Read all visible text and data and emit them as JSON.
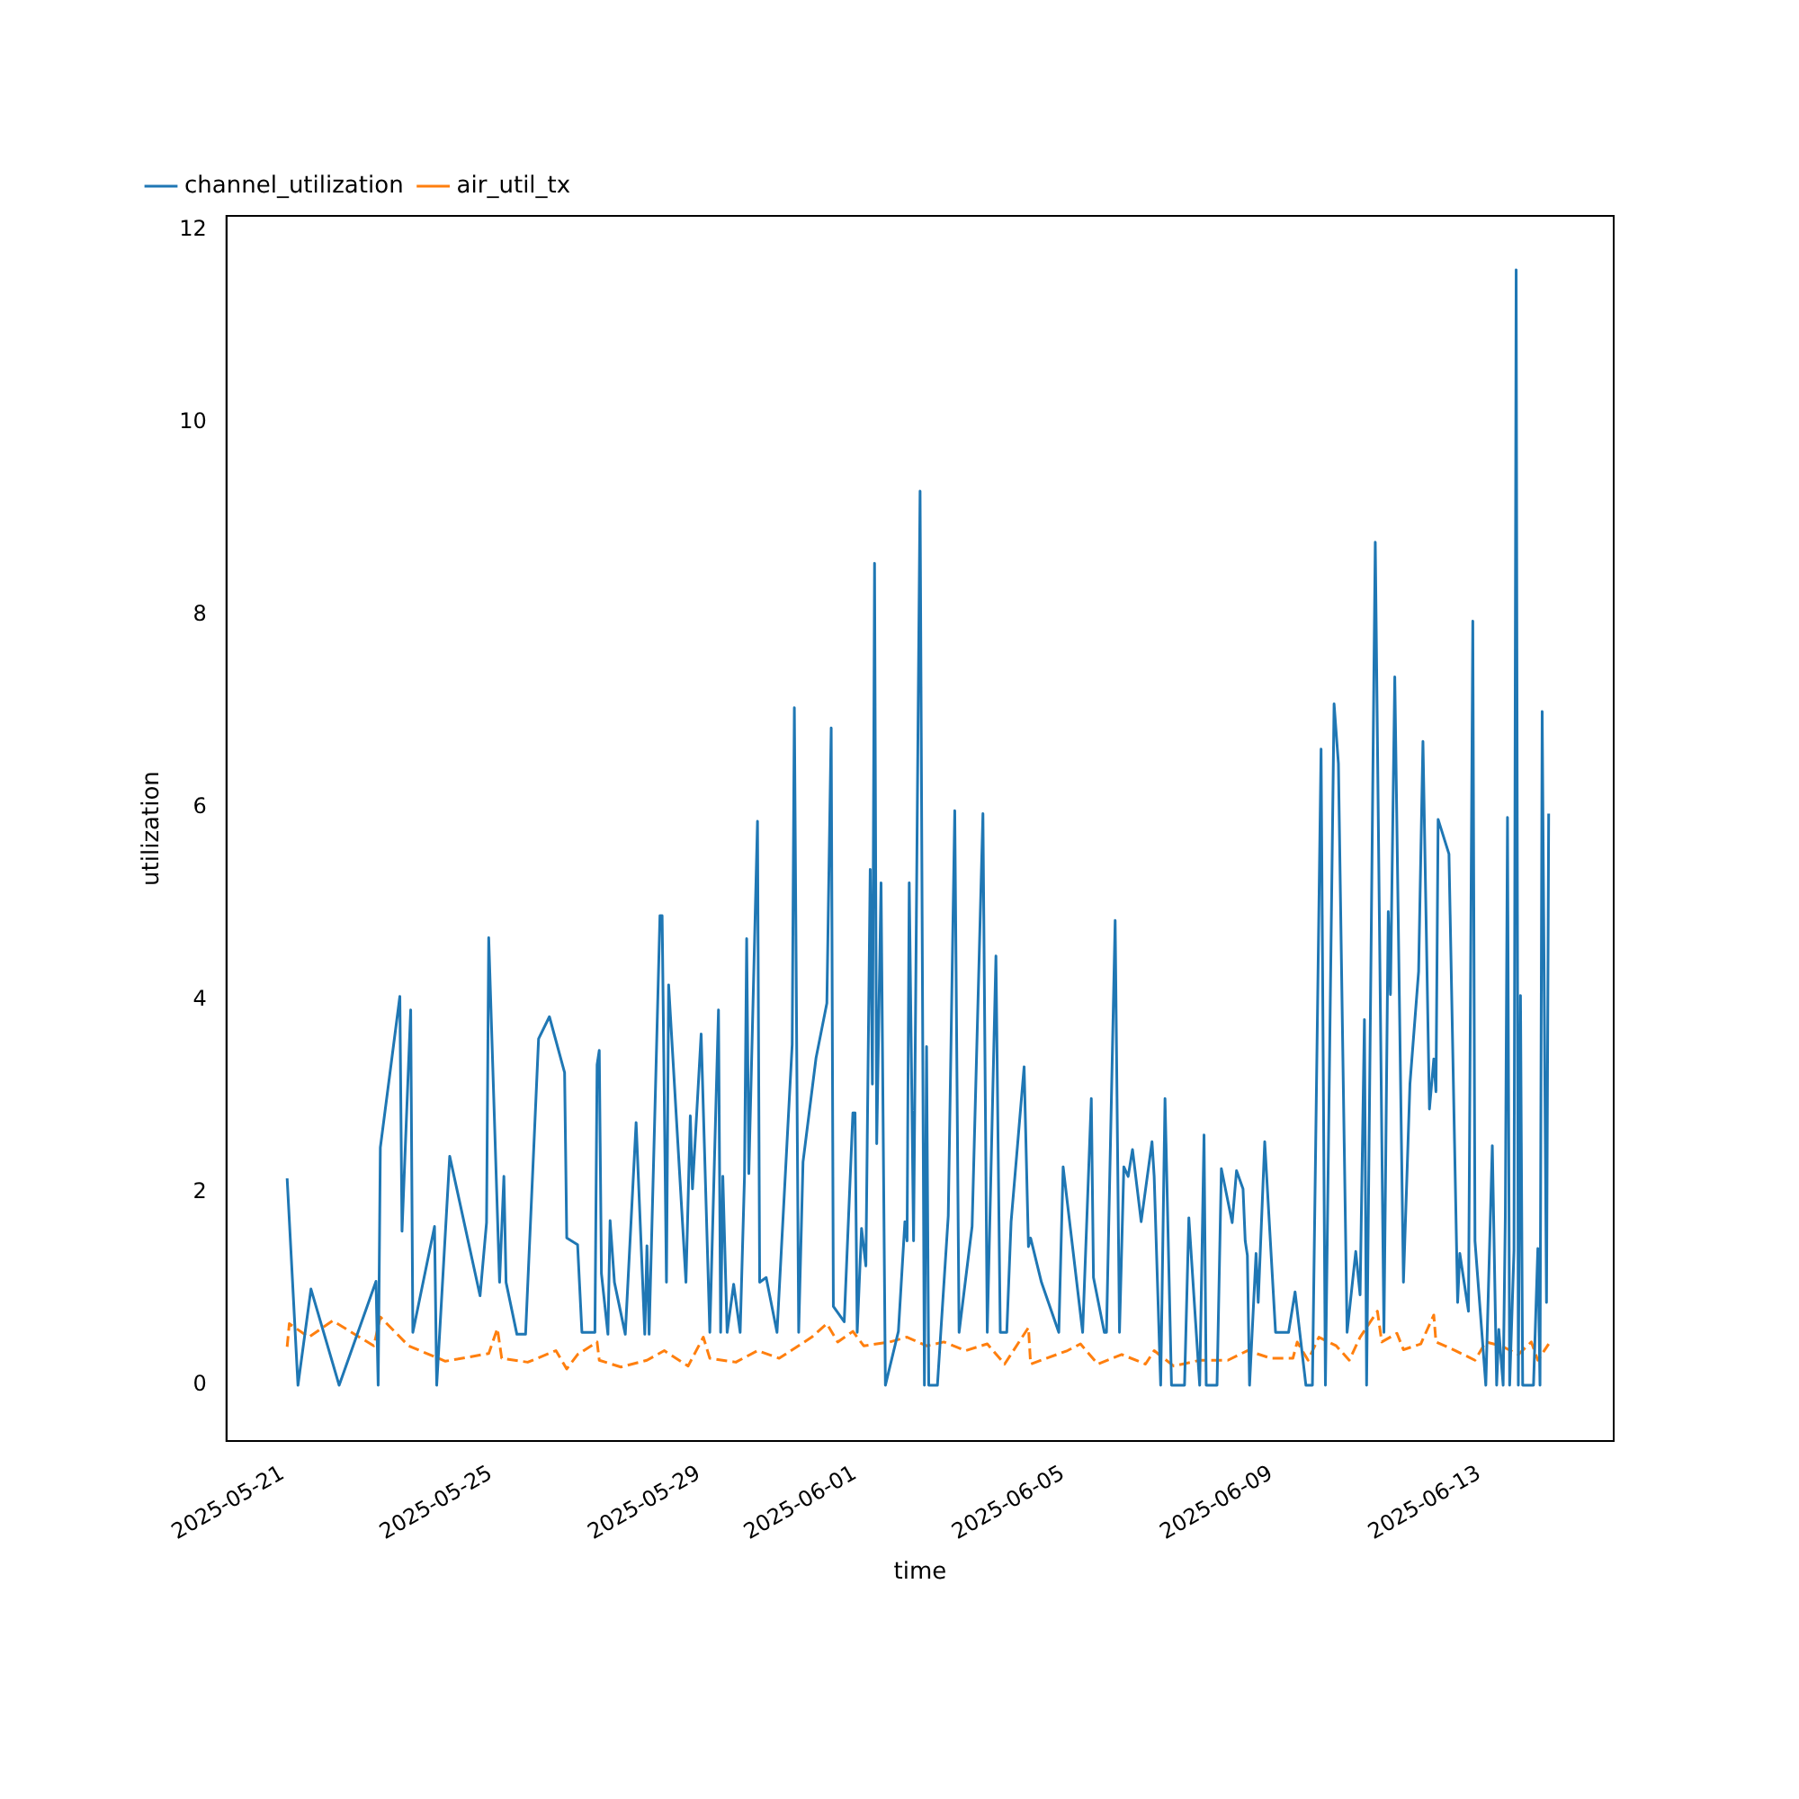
{
  "chart_data": {
    "type": "line",
    "xlabel": "time",
    "ylabel": "utilization",
    "legend": "top left",
    "xlim": [
      "2025-05-19T22:00",
      "2025-06-15T14:00"
    ],
    "ylim": [
      -0.58,
      12.15
    ],
    "xticks": [
      "2025-05-21",
      "2025-05-25",
      "2025-05-29",
      "2025-06-01",
      "2025-06-05",
      "2025-06-09",
      "2025-06-13"
    ],
    "yticks": [
      0,
      2,
      4,
      6,
      8,
      10,
      12
    ],
    "series": [
      {
        "name": "channel_utilization",
        "color": "#1f77b4",
        "line_style": "solid",
        "x": [
          "2025-05-21T02:00",
          "2025-05-21T07:00",
          "2025-05-21T13:00",
          "2025-05-22T02:00",
          "2025-05-22T19:00",
          "2025-05-22T20:00",
          "2025-05-22T21:00",
          "2025-05-23T06:00",
          "2025-05-23T07:00",
          "2025-05-23T11:00",
          "2025-05-23T12:00",
          "2025-05-23T22:00",
          "2025-05-23T23:00",
          "2025-05-24T05:00",
          "2025-05-24T19:00",
          "2025-05-24T22:00",
          "2025-05-24T23:00",
          "2025-05-25T04:00",
          "2025-05-25T06:00",
          "2025-05-25T07:00",
          "2025-05-25T12:00",
          "2025-05-25T16:00",
          "2025-05-25T22:00",
          "2025-05-26T03:00",
          "2025-05-26T10:00",
          "2025-05-26T11:00",
          "2025-05-26T16:00",
          "2025-05-26T18:00",
          "2025-05-27T00:00",
          "2025-05-27T01:00",
          "2025-05-27T02:00",
          "2025-05-27T03:00",
          "2025-05-27T06:00",
          "2025-05-27T07:00",
          "2025-05-27T09:00",
          "2025-05-27T14:00",
          "2025-05-27T19:00",
          "2025-05-27T23:00",
          "2025-05-28T00:00",
          "2025-05-28T01:00",
          "2025-05-28T06:00",
          "2025-05-28T07:00",
          "2025-05-28T09:00",
          "2025-05-28T10:00",
          "2025-05-28T18:00",
          "2025-05-28T20:00",
          "2025-05-28T21:00",
          "2025-05-29T01:00",
          "2025-05-29T05:00",
          "2025-05-29T09:00",
          "2025-05-29T10:00",
          "2025-05-29T11:00",
          "2025-05-29T13:00",
          "2025-05-29T16:00",
          "2025-05-29T19:00",
          "2025-05-29T21:00",
          "2025-05-29T22:00",
          "2025-05-29T23:00",
          "2025-05-30T03:00",
          "2025-05-30T04:00",
          "2025-05-30T07:00",
          "2025-05-30T12:00",
          "2025-05-30T19:00",
          "2025-05-30T20:00",
          "2025-05-30T22:00",
          "2025-05-31T00:00",
          "2025-05-31T06:00",
          "2025-05-31T11:00",
          "2025-05-31T13:00",
          "2025-05-31T14:00",
          "2025-05-31T19:00",
          "2025-05-31T23:00",
          "2025-06-01T00:00",
          "2025-06-01T01:00",
          "2025-06-01T03:00",
          "2025-06-01T05:00",
          "2025-06-01T07:00",
          "2025-06-01T08:00",
          "2025-06-01T09:00",
          "2025-06-01T10:00",
          "2025-06-01T12:00",
          "2025-06-01T14:00",
          "2025-06-01T20:00",
          "2025-06-01T23:00",
          "2025-06-02T00:00",
          "2025-06-02T01:00",
          "2025-06-02T03:00",
          "2025-06-02T06:00",
          "2025-06-02T08:00",
          "2025-06-02T09:00",
          "2025-06-02T10:00",
          "2025-06-02T14:00",
          "2025-06-02T19:00",
          "2025-06-02T22:00",
          "2025-06-03T00:00",
          "2025-06-03T06:00",
          "2025-06-03T11:00",
          "2025-06-03T13:00",
          "2025-06-03T17:00",
          "2025-06-03T19:00",
          "2025-06-03T22:00",
          "2025-06-04T00:00",
          "2025-06-04T06:00",
          "2025-06-04T08:00",
          "2025-06-04T09:00",
          "2025-06-04T14:00",
          "2025-06-04T22:00",
          "2025-06-05T00:00",
          "2025-06-05T09:00",
          "2025-06-05T13:00",
          "2025-06-05T14:00",
          "2025-06-05T19:00",
          "2025-06-05T20:00",
          "2025-06-06T00:00",
          "2025-06-06T02:00",
          "2025-06-06T04:00",
          "2025-06-06T06:00",
          "2025-06-06T08:00",
          "2025-06-06T12:00",
          "2025-06-06T17:00",
          "2025-06-06T18:00",
          "2025-06-06T21:00",
          "2025-06-06T23:00",
          "2025-06-07T02:00",
          "2025-06-07T06:00",
          "2025-06-07T08:00",
          "2025-06-07T10:00",
          "2025-06-07T15:00",
          "2025-06-07T17:00",
          "2025-06-07T18:00",
          "2025-06-07T23:00",
          "2025-06-08T01:00",
          "2025-06-08T06:00",
          "2025-06-08T08:00",
          "2025-06-08T11:00",
          "2025-06-08T12:00",
          "2025-06-08T13:00",
          "2025-06-08T14:00",
          "2025-06-08T17:00",
          "2025-06-08T18:00",
          "2025-06-08T21:00",
          "2025-06-09T02:00",
          "2025-06-09T08:00",
          "2025-06-09T11:00",
          "2025-06-09T16:00",
          "2025-06-09T19:00",
          "2025-06-09T23:00",
          "2025-06-10T01:00",
          "2025-06-10T05:00",
          "2025-06-10T07:00",
          "2025-06-10T11:00",
          "2025-06-10T15:00",
          "2025-06-10T17:00",
          "2025-06-10T19:00",
          "2025-06-10T20:00",
          "2025-06-11T00:00",
          "2025-06-11T04:00",
          "2025-06-11T06:00",
          "2025-06-11T07:00",
          "2025-06-11T09:00",
          "2025-06-11T13:00",
          "2025-06-11T16:00",
          "2025-06-11T20:00",
          "2025-06-11T22:00",
          "2025-06-12T01:00",
          "2025-06-12T03:00",
          "2025-06-12T04:00",
          "2025-06-12T05:00",
          "2025-06-12T10:00",
          "2025-06-12T14:00",
          "2025-06-12T15:00",
          "2025-06-12T19:00",
          "2025-06-12T21:00",
          "2025-06-12T22:00",
          "2025-06-13T03:00",
          "2025-06-13T06:00",
          "2025-06-13T08:00",
          "2025-06-13T09:00",
          "2025-06-13T11:00",
          "2025-06-13T12:00",
          "2025-06-13T13:00",
          "2025-06-13T14:00",
          "2025-06-13T16:00",
          "2025-06-13T17:00",
          "2025-06-13T18:00",
          "2025-06-13T19:00",
          "2025-06-13T20:00",
          "2025-06-14T01:00",
          "2025-06-14T03:00",
          "2025-06-14T04:00",
          "2025-06-14T05:00",
          "2025-06-14T07:00",
          "2025-06-14T08:00"
        ],
        "values": [
          2.15,
          0,
          1.0,
          0,
          1.08,
          0,
          2.47,
          4.04,
          1.6,
          3.9,
          0.55,
          1.65,
          0,
          2.38,
          0.93,
          1.69,
          4.65,
          1.07,
          2.17,
          1.07,
          0.53,
          0.53,
          3.6,
          3.83,
          3.25,
          1.53,
          1.46,
          0.55,
          0.55,
          3.33,
          3.48,
          1.16,
          0.53,
          1.71,
          1.07,
          0.53,
          2.73,
          0.53,
          1.45,
          0.53,
          4.88,
          4.88,
          1.07,
          4.16,
          1.07,
          2.8,
          2.04,
          3.65,
          0.55,
          3.9,
          0.55,
          2.17,
          0.55,
          1.05,
          0.55,
          2.17,
          4.64,
          2.2,
          5.86,
          1.07,
          1.12,
          0.55,
          3.54,
          7.04,
          0.55,
          2.32,
          3.4,
          3.97,
          6.83,
          0.82,
          0.66,
          2.83,
          2.83,
          0.55,
          1.63,
          1.24,
          5.36,
          3.13,
          8.54,
          2.51,
          5.22,
          0,
          0.56,
          1.7,
          1.5,
          5.22,
          1.5,
          9.29,
          0,
          3.52,
          0,
          0,
          1.76,
          5.97,
          0.55,
          1.65,
          5.94,
          0.55,
          4.46,
          0.55,
          0.55,
          1.7,
          3.31,
          1.44,
          1.53,
          1.07,
          0.55,
          2.27,
          0.55,
          2.98,
          1.12,
          0.55,
          0.55,
          4.83,
          0.55,
          2.27,
          2.17,
          2.45,
          1.7,
          2.53,
          2.17,
          0,
          2.98,
          0,
          0,
          0,
          1.74,
          0,
          2.6,
          0,
          0,
          2.25,
          1.69,
          2.23,
          2.04,
          1.5,
          1.35,
          0,
          1.37,
          0.86,
          2.53,
          0.55,
          0.55,
          0.97,
          0,
          0,
          6.61,
          0,
          7.08,
          6.46,
          0.55,
          1.39,
          0.94,
          3.8,
          0,
          8.76,
          0.55,
          4.92,
          4.06,
          7.36,
          1.07,
          3.13,
          4.3,
          6.69,
          2.87,
          3.39,
          3.05,
          5.88,
          5.52,
          0.86,
          1.37,
          0.77,
          7.94,
          1.5,
          0,
          2.49,
          0,
          0.58,
          0,
          1.76,
          5.9,
          0,
          1.4,
          11.59,
          0,
          4.05,
          0,
          0,
          1.42,
          0,
          7.0,
          0.86,
          5.94
        ]
      },
      {
        "name": "air_util_tx",
        "color": "#ff7f0e",
        "line_style": "dashed",
        "x": [
          "2025-05-21T02:00",
          "2025-05-21T03:00",
          "2025-05-21T12:00",
          "2025-05-21T23:00",
          "2025-05-22T18:00",
          "2025-05-22T21:00",
          "2025-05-23T10:00",
          "2025-05-24T03:00",
          "2025-05-24T23:00",
          "2025-05-25T03:00",
          "2025-05-25T05:00",
          "2025-05-25T17:00",
          "2025-05-26T06:00",
          "2025-05-26T11:00",
          "2025-05-26T16:00",
          "2025-05-27T01:00",
          "2025-05-27T02:00",
          "2025-05-27T12:00",
          "2025-05-28T00:00",
          "2025-05-28T08:00",
          "2025-05-28T19:00",
          "2025-05-29T02:00",
          "2025-05-29T05:00",
          "2025-05-29T17:00",
          "2025-05-30T03:00",
          "2025-05-30T13:00",
          "2025-05-31T04:00",
          "2025-05-31T11:00",
          "2025-05-31T16:00",
          "2025-05-31T23:00",
          "2025-06-01T04:00",
          "2025-06-01T16:00",
          "2025-06-02T00:00",
          "2025-06-02T09:00",
          "2025-06-02T17:00",
          "2025-06-03T03:00",
          "2025-06-03T13:00",
          "2025-06-03T21:00",
          "2025-06-04T08:00",
          "2025-06-04T09:00",
          "2025-06-05T02:00",
          "2025-06-05T08:00",
          "2025-06-05T16:00",
          "2025-06-06T03:00",
          "2025-06-06T14:00",
          "2025-06-06T18:00",
          "2025-06-07T03:00",
          "2025-06-07T15:00",
          "2025-06-08T04:00",
          "2025-06-08T13:00",
          "2025-06-09T00:00",
          "2025-06-09T10:00",
          "2025-06-09T12:00",
          "2025-06-09T17:00",
          "2025-06-09T22:00",
          "2025-06-10T06:00",
          "2025-06-10T12:00",
          "2025-06-10T17:00",
          "2025-06-11T01:00",
          "2025-06-11T03:00",
          "2025-06-11T10:00",
          "2025-06-11T13:00",
          "2025-06-11T21:00",
          "2025-06-12T03:00",
          "2025-06-12T04:00",
          "2025-06-12T13:00",
          "2025-06-12T22:00",
          "2025-06-13T03:00",
          "2025-06-13T10:00",
          "2025-06-13T18:00",
          "2025-06-14T00:00",
          "2025-06-14T03:00",
          "2025-06-14T08:00"
        ],
        "values": [
          0.4,
          0.64,
          0.5,
          0.67,
          0.41,
          0.71,
          0.41,
          0.25,
          0.33,
          0.59,
          0.28,
          0.24,
          0.36,
          0.17,
          0.32,
          0.45,
          0.26,
          0.19,
          0.26,
          0.36,
          0.2,
          0.5,
          0.28,
          0.24,
          0.36,
          0.28,
          0.5,
          0.64,
          0.45,
          0.56,
          0.41,
          0.45,
          0.5,
          0.41,
          0.45,
          0.36,
          0.43,
          0.22,
          0.6,
          0.22,
          0.36,
          0.43,
          0.22,
          0.32,
          0.22,
          0.36,
          0.2,
          0.26,
          0.26,
          0.36,
          0.28,
          0.28,
          0.45,
          0.26,
          0.5,
          0.41,
          0.26,
          0.5,
          0.77,
          0.45,
          0.54,
          0.37,
          0.43,
          0.73,
          0.45,
          0.36,
          0.26,
          0.45,
          0.41,
          0.32,
          0.45,
          0.26,
          0.43
        ]
      }
    ]
  }
}
